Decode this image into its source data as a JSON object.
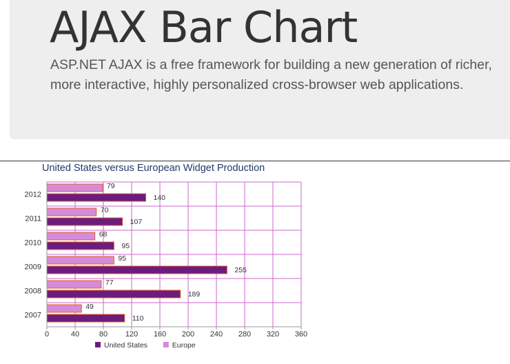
{
  "page": {
    "heading": "AJAX Bar Chart",
    "lead": "ASP.NET AJAX is a free framework for building a new generation of richer, more interactive, highly personalized cross-browser web applications."
  },
  "chart_data": {
    "type": "bar",
    "orientation": "horizontal",
    "title": "United States versus European Widget Production",
    "categories": [
      "2007",
      "2008",
      "2009",
      "2010",
      "2011",
      "2012"
    ],
    "series": [
      {
        "name": "United States",
        "values": [
          110,
          189,
          255,
          95,
          107,
          140
        ],
        "color": "#6b1c7e"
      },
      {
        "name": "Europe",
        "values": [
          49,
          77,
          95,
          68,
          70,
          79
        ],
        "color": "#d68ad8"
      }
    ],
    "xlim": [
      0,
      360
    ],
    "xticks": [
      0,
      40,
      80,
      120,
      160,
      200,
      240,
      280,
      320,
      360
    ],
    "grid": true,
    "grid_color": "#cc66cc",
    "bar_border_color": "#e0602a",
    "legend_position": "bottom"
  }
}
